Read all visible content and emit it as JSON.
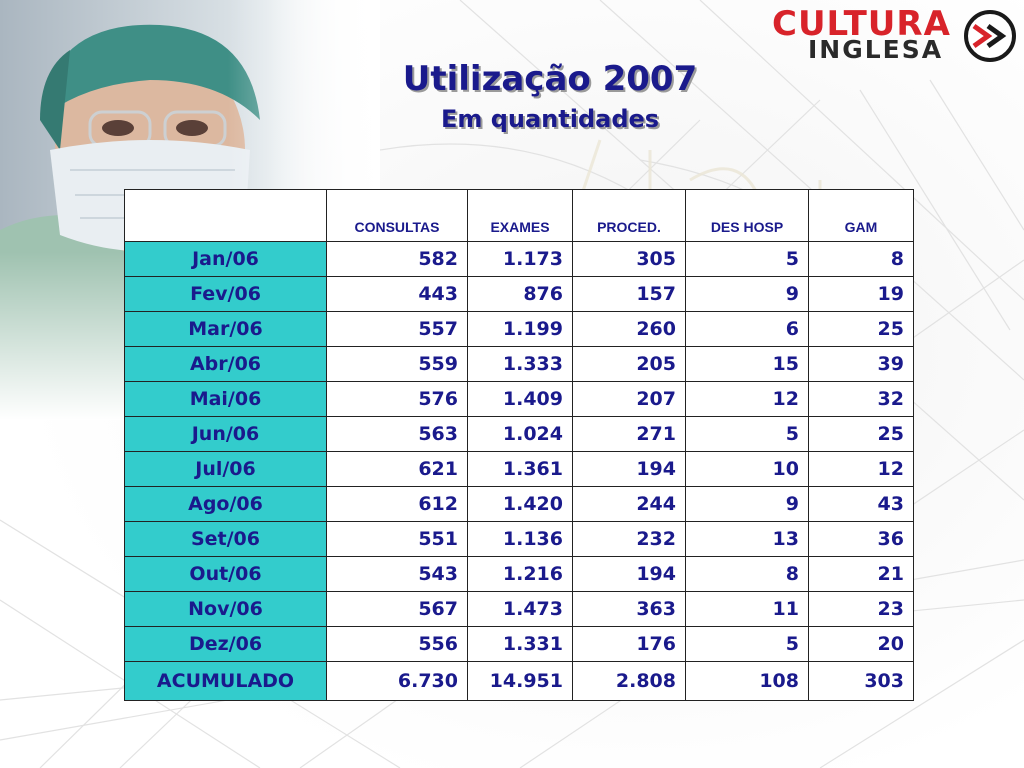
{
  "logo": {
    "line1": "CULTURA",
    "line2": "INGLESA",
    "mark_colors": {
      "ring": "#1a1a1a",
      "arrows": "#d8232a"
    }
  },
  "title": "Utilização 2007",
  "subtitle": "Em quantidades",
  "colors": {
    "text": "#1a1a8c",
    "month_cell": "#33cccc",
    "brand_red": "#d8232a"
  },
  "table": {
    "headers": [
      "",
      "CONSULTAS",
      "EXAMES",
      "PROCED.",
      "DES HOSP",
      "GAM"
    ],
    "rows": [
      {
        "month": "Jan/06",
        "values": [
          "582",
          "1.173",
          "305",
          "5",
          "8"
        ]
      },
      {
        "month": "Fev/06",
        "values": [
          "443",
          "876",
          "157",
          "9",
          "19"
        ]
      },
      {
        "month": "Mar/06",
        "values": [
          "557",
          "1.199",
          "260",
          "6",
          "25"
        ]
      },
      {
        "month": "Abr/06",
        "values": [
          "559",
          "1.333",
          "205",
          "15",
          "39"
        ]
      },
      {
        "month": "Mai/06",
        "values": [
          "576",
          "1.409",
          "207",
          "12",
          "32"
        ]
      },
      {
        "month": "Jun/06",
        "values": [
          "563",
          "1.024",
          "271",
          "5",
          "25"
        ]
      },
      {
        "month": "Jul/06",
        "values": [
          "621",
          "1.361",
          "194",
          "10",
          "12"
        ]
      },
      {
        "month": "Ago/06",
        "values": [
          "612",
          "1.420",
          "244",
          "9",
          "43"
        ]
      },
      {
        "month": "Set/06",
        "values": [
          "551",
          "1.136",
          "232",
          "13",
          "36"
        ]
      },
      {
        "month": "Out/06",
        "values": [
          "543",
          "1.216",
          "194",
          "8",
          "21"
        ]
      },
      {
        "month": "Nov/06",
        "values": [
          "567",
          "1.473",
          "363",
          "11",
          "23"
        ]
      },
      {
        "month": "Dez/06",
        "values": [
          "556",
          "1.331",
          "176",
          "5",
          "20"
        ]
      }
    ],
    "total": {
      "label": "ACUMULADO",
      "values": [
        "6.730",
        "14.951",
        "2.808",
        "108",
        "303"
      ]
    }
  }
}
